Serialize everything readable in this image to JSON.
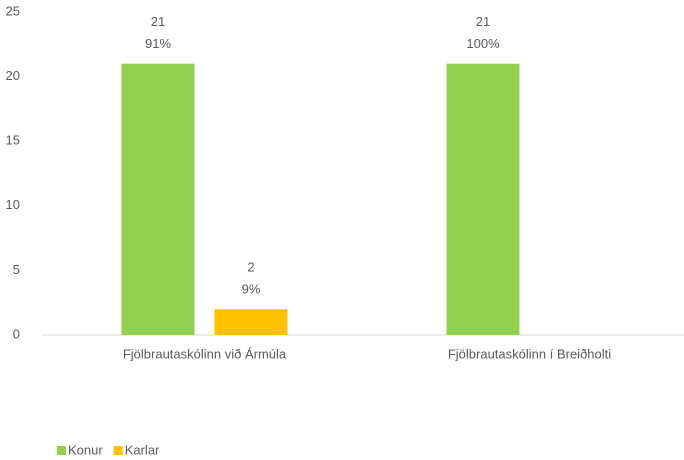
{
  "chart_data": {
    "type": "bar",
    "categories": [
      "Fjölbrautaskólinn við Ármúla",
      "Fjölbrautaskólinn í Breiðholti"
    ],
    "series": [
      {
        "name": "Konur",
        "color": "#92d050",
        "values": [
          21,
          21
        ],
        "shares": [
          91,
          100
        ],
        "share_labels": [
          "91%",
          "100%"
        ]
      },
      {
        "name": "Karlar",
        "color": "#ffc000",
        "values": [
          2,
          null
        ],
        "shares": [
          9,
          null
        ],
        "share_labels": [
          "9%",
          null
        ]
      }
    ],
    "ylim": [
      0,
      25
    ],
    "yticks": [
      0,
      5,
      10,
      15,
      20,
      25
    ],
    "grid": false,
    "legend": "bottom-left"
  }
}
